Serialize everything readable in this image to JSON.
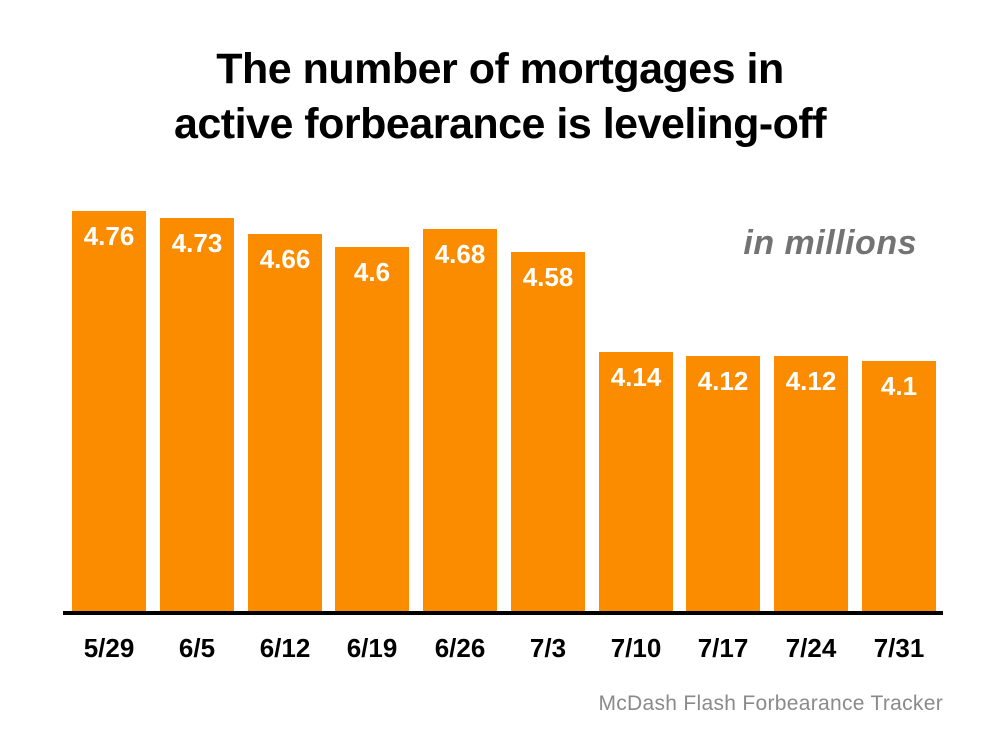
{
  "title": {
    "line1": "The number of mortgages in",
    "line2": "active forbearance is leveling-off"
  },
  "source": "McDash Flash Forbearance Tracker",
  "colors": {
    "bar": "#FB8C00",
    "bar_label": "#FFFFFF",
    "title": "#000000",
    "annotation": "#737373",
    "source": "#8A8A8A",
    "axis": "#000000"
  },
  "chart_data": {
    "type": "bar",
    "title": "The number of mortgages in active forbearance is leveling-off",
    "unit_note": "in millions",
    "categories": [
      "5/29",
      "6/5",
      "6/12",
      "6/19",
      "6/26",
      "7/3",
      "7/10",
      "7/17",
      "7/24",
      "7/31"
    ],
    "values": [
      4.76,
      4.73,
      4.66,
      4.6,
      4.68,
      4.58,
      4.14,
      4.12,
      4.12,
      4.1
    ],
    "value_labels": [
      "4.76",
      "4.73",
      "4.66",
      "4.6",
      "4.68",
      "4.58",
      "4.14",
      "4.12",
      "4.12",
      "4.1"
    ],
    "xlabel": "",
    "ylabel": "",
    "ylim": [
      3.0,
      4.85
    ],
    "grid": false,
    "legend": false,
    "data_labels": "inside-top",
    "source_note": "McDash Flash Forbearance Tracker"
  }
}
